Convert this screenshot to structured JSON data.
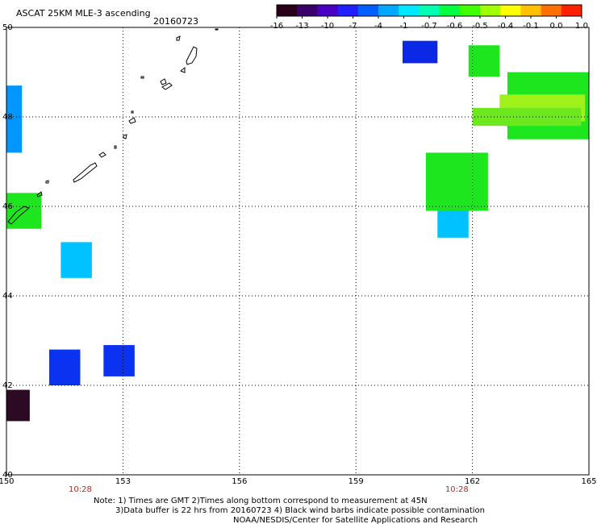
{
  "title": "ASCAT 25KM MLE-3 ascending",
  "date": "20160723",
  "colorbar": {
    "colors": [
      "#2a0018",
      "#3a006a",
      "#4a00c0",
      "#2020ff",
      "#0060ff",
      "#00a8ff",
      "#00e8ff",
      "#00ffb0",
      "#00ff40",
      "#40ff00",
      "#a0ff00",
      "#ffff00",
      "#ffc000",
      "#ff7000",
      "#ff2000"
    ],
    "tick_labels": [
      "-16",
      "-13",
      "-10",
      "-7",
      "-4",
      "-1",
      "-0.7",
      "-0.6",
      "-0.5",
      "-0.4",
      "-0.1",
      "0.0",
      "1.0"
    ]
  },
  "axes": {
    "x_ticks": [
      "150",
      "153",
      "156",
      "159",
      "162",
      "165"
    ],
    "y_ticks": [
      "50",
      "48",
      "46",
      "44",
      "42",
      "40"
    ],
    "time_labels": [
      "10:28",
      "10:28"
    ]
  },
  "map_data": {
    "lon_range": [
      150,
      165
    ],
    "lat_range": [
      40,
      50
    ],
    "cells": [
      {
        "lon": [
          150.0,
          150.4
        ],
        "lat": [
          47.2,
          48.7
        ],
        "color": "#0096ff"
      },
      {
        "lon": [
          150.0,
          150.9
        ],
        "lat": [
          45.5,
          46.3
        ],
        "color": "#1ee61e"
      },
      {
        "lon": [
          151.4,
          152.2
        ],
        "lat": [
          44.4,
          45.2
        ],
        "color": "#00c2ff"
      },
      {
        "lon": [
          151.1,
          151.9
        ],
        "lat": [
          42.0,
          42.8
        ],
        "color": "#0a32f0"
      },
      {
        "lon": [
          152.5,
          153.3
        ],
        "lat": [
          42.2,
          42.9
        ],
        "color": "#0a32f0"
      },
      {
        "lon": [
          150.0,
          150.6
        ],
        "lat": [
          41.2,
          41.9
        ],
        "color": "#2c0a24"
      },
      {
        "lon": [
          160.2,
          161.1
        ],
        "lat": [
          49.2,
          49.7
        ],
        "color": "#0a28e6"
      },
      {
        "lon": [
          161.9,
          162.7
        ],
        "lat": [
          48.9,
          49.6
        ],
        "color": "#1ee61e"
      },
      {
        "lon": [
          161.1,
          161.9
        ],
        "lat": [
          45.3,
          46.1
        ],
        "color": "#00c2ff"
      },
      {
        "lon": [
          160.8,
          162.4
        ],
        "lat": [
          45.9,
          47.2
        ],
        "color": "#1ee61e"
      },
      {
        "lon": [
          162.9,
          165.0
        ],
        "lat": [
          47.5,
          49.0
        ],
        "color": "#1ee61e"
      },
      {
        "lon": [
          162.7,
          164.9
        ],
        "lat": [
          47.9,
          48.5
        ],
        "color": "#a0f01a"
      },
      {
        "lon": [
          162.0,
          164.8
        ],
        "lat": [
          47.8,
          48.2
        ],
        "color": "#6ee81e"
      }
    ]
  },
  "notes": [
    "Note: 1) Times are GMT 2)Times along bottom correspond to measurement at 45N",
    "3)Data buffer is 22 hrs from 20160723 4) Black wind barbs indicate possible contamination",
    "NOAA/NESDIS/Center for Satellite Applications and Research"
  ]
}
